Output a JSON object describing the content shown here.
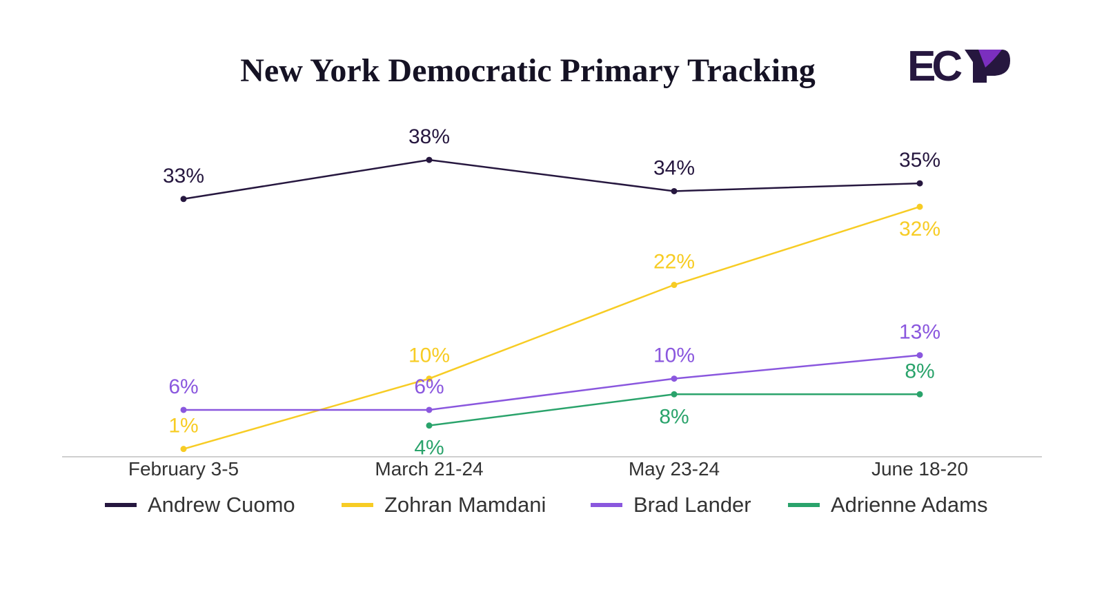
{
  "chart_data": {
    "type": "line",
    "title": "New York Democratic Primary Tracking",
    "categories": [
      "February 3-5",
      "March 21-24",
      "May 23-24",
      "June 18-20"
    ],
    "series": [
      {
        "name": "Andrew Cuomo",
        "color": "#26173f",
        "values": [
          33,
          38,
          34,
          35
        ],
        "labels": [
          "33%",
          "38%",
          "34%",
          "35%"
        ]
      },
      {
        "name": "Zohran Mamdani",
        "color": "#f7cc24",
        "values": [
          1,
          10,
          22,
          32
        ],
        "labels": [
          "1%",
          "10%",
          "22%",
          "32%"
        ]
      },
      {
        "name": "Brad Lander",
        "color": "#8a57de",
        "values": [
          6,
          6,
          10,
          13
        ],
        "labels": [
          "6%",
          "6%",
          "10%",
          "13%"
        ]
      },
      {
        "name": "Adrienne Adams",
        "color": "#2aa36b",
        "values": [
          null,
          4,
          8,
          8
        ],
        "labels": [
          "",
          "4%",
          "8%",
          "8%"
        ]
      }
    ],
    "ylim": [
      0,
      40
    ],
    "grid": false,
    "legend_position": "bottom"
  },
  "logo": {
    "text": "ECP",
    "color_dark": "#26173f",
    "color_accent": "#7b2fbf"
  }
}
